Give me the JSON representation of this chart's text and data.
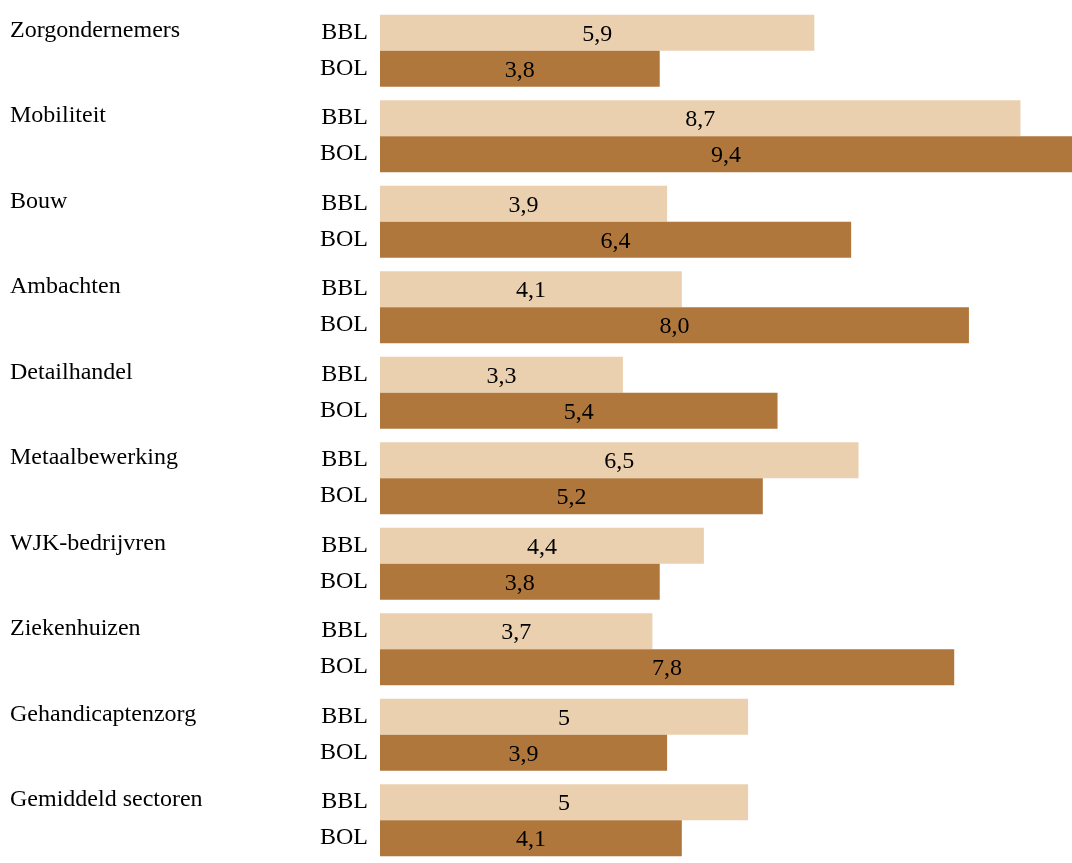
{
  "chart_data": {
    "type": "bar",
    "orientation": "horizontal",
    "categories": [
      "Zorgondernemers",
      "Mobiliteit",
      "Bouw",
      "Ambachten",
      "Detailhandel",
      "Metaalbewerking",
      "WJK-bedrijvren",
      "Ziekenhuizen",
      "Gehandicaptenzorg",
      "Gemiddeld sectoren"
    ],
    "series": [
      {
        "name": "BBL",
        "color": "#ebd0b0",
        "values": [
          5.9,
          8.7,
          3.9,
          4.1,
          3.3,
          6.5,
          4.4,
          3.7,
          5,
          5
        ],
        "value_labels": [
          "5,9",
          "8,7",
          "3,9",
          "4,1",
          "3,3",
          "6,5",
          "4,4",
          "3,7",
          "5",
          "5"
        ]
      },
      {
        "name": "BOL",
        "color": "#b0773d",
        "values": [
          3.8,
          9.4,
          6.4,
          8.0,
          5.4,
          5.2,
          3.8,
          7.8,
          3.9,
          4.1
        ],
        "value_labels": [
          "3,8",
          "9,4",
          "6,4",
          "8,0",
          "5,4",
          "5,2",
          "3,8",
          "7,8",
          "3,9",
          "4,1"
        ]
      }
    ]
  }
}
